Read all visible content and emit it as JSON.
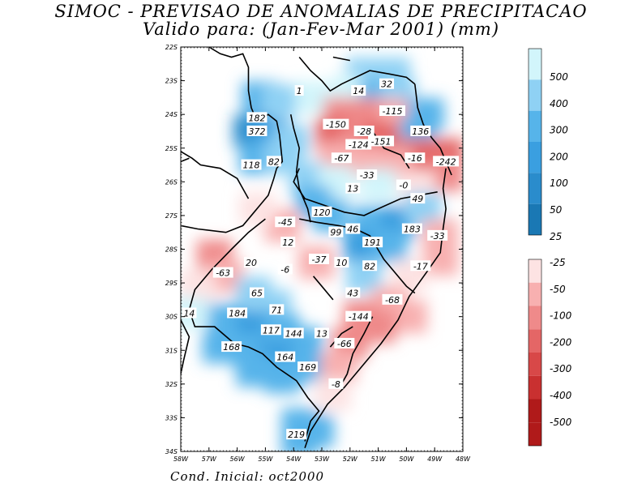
{
  "title_line1": "SIMOC - PREVISAO DE ANOMALIAS DE PRECIPITACAO",
  "title_line2": "Valido para: (Jan-Fev-Mar 2001) (mm)",
  "footer": "Cond. Inicial: oct2000",
  "lat_labels": [
    "22S",
    "23S",
    "24S",
    "25S",
    "26S",
    "27S",
    "28S",
    "29S",
    "30S",
    "31S",
    "32S",
    "33S",
    "34S"
  ],
  "lon_labels": [
    "58W",
    "57W",
    "56W",
    "55W",
    "54W",
    "53W",
    "52W",
    "51W",
    "50W",
    "49W",
    "48W"
  ],
  "colorbar_positive": {
    "labels": [
      "500",
      "400",
      "300",
      "200",
      "100",
      "50",
      "25"
    ],
    "colors": [
      "#1a78b4",
      "#2a8ccc",
      "#3a9fe0",
      "#56b4ea",
      "#8fd1f4",
      "#d2f5fb"
    ]
  },
  "colorbar_negative": {
    "labels": [
      "-25",
      "-50",
      "-100",
      "-200",
      "-300",
      "-400",
      "-500"
    ],
    "colors": [
      "#fde3e3",
      "#f8b0b0",
      "#ef8a8a",
      "#e46666",
      "#d84848",
      "#c93030",
      "#b01a1a"
    ]
  },
  "values": [
    {
      "text": "1",
      "lon": -53.8,
      "lat": -23.3
    },
    {
      "text": "14",
      "lon": -51.7,
      "lat": -23.3
    },
    {
      "text": "32",
      "lon": -50.7,
      "lat": -23.1
    },
    {
      "text": "-115",
      "lon": -50.5,
      "lat": -23.9
    },
    {
      "text": "182",
      "lon": -55.3,
      "lat": -24.1
    },
    {
      "text": "372",
      "lon": -55.3,
      "lat": -24.5
    },
    {
      "text": "-150",
      "lon": -52.5,
      "lat": -24.3
    },
    {
      "text": "-28",
      "lon": -51.5,
      "lat": -24.5
    },
    {
      "text": "136",
      "lon": -49.5,
      "lat": -24.5
    },
    {
      "text": "-124",
      "lon": -51.7,
      "lat": -24.9
    },
    {
      "text": "-151",
      "lon": -50.9,
      "lat": -24.8
    },
    {
      "text": "-67",
      "lon": -52.3,
      "lat": -25.3
    },
    {
      "text": "-16",
      "lon": -49.7,
      "lat": -25.3
    },
    {
      "text": "-242",
      "lon": -48.6,
      "lat": -25.4
    },
    {
      "text": "118",
      "lon": -55.5,
      "lat": -25.5
    },
    {
      "text": "82",
      "lon": -54.7,
      "lat": -25.4
    },
    {
      "text": "-33",
      "lon": -51.4,
      "lat": -25.8
    },
    {
      "text": "13",
      "lon": -51.9,
      "lat": -26.2
    },
    {
      "text": "-0",
      "lon": -50.1,
      "lat": -26.1
    },
    {
      "text": "49",
      "lon": -49.6,
      "lat": -26.5
    },
    {
      "text": "120",
      "lon": -53.0,
      "lat": -26.9
    },
    {
      "text": "-45",
      "lon": -54.3,
      "lat": -27.2
    },
    {
      "text": "99",
      "lon": -52.5,
      "lat": -27.5
    },
    {
      "text": "46",
      "lon": -51.9,
      "lat": -27.4
    },
    {
      "text": "183",
      "lon": -49.8,
      "lat": -27.4
    },
    {
      "text": "-33",
      "lon": -48.9,
      "lat": -27.6
    },
    {
      "text": "12",
      "lon": -54.2,
      "lat": -27.8
    },
    {
      "text": "191",
      "lon": -51.2,
      "lat": -27.8
    },
    {
      "text": "-37",
      "lon": -53.1,
      "lat": -28.3
    },
    {
      "text": "10",
      "lon": -52.3,
      "lat": -28.4
    },
    {
      "text": "82",
      "lon": -51.3,
      "lat": -28.5
    },
    {
      "text": "-17",
      "lon": -49.5,
      "lat": -28.5
    },
    {
      "text": "20",
      "lon": -55.5,
      "lat": -28.4
    },
    {
      "text": "-6",
      "lon": -54.3,
      "lat": -28.6
    },
    {
      "text": "-63",
      "lon": -56.5,
      "lat": -28.7
    },
    {
      "text": "65",
      "lon": -55.3,
      "lat": -29.3
    },
    {
      "text": "43",
      "lon": -51.9,
      "lat": -29.3
    },
    {
      "text": "-68",
      "lon": -50.5,
      "lat": -29.5
    },
    {
      "text": "71",
      "lon": -54.6,
      "lat": -29.8
    },
    {
      "text": "14",
      "lon": -57.7,
      "lat": -29.9
    },
    {
      "text": "184",
      "lon": -56.0,
      "lat": -29.9
    },
    {
      "text": "-144",
      "lon": -51.7,
      "lat": -30.0
    },
    {
      "text": "117",
      "lon": -54.8,
      "lat": -30.4
    },
    {
      "text": "144",
      "lon": -54.0,
      "lat": -30.5
    },
    {
      "text": "13",
      "lon": -53.0,
      "lat": -30.5
    },
    {
      "text": "-66",
      "lon": -52.2,
      "lat": -30.8
    },
    {
      "text": "168",
      "lon": -56.2,
      "lat": -30.9
    },
    {
      "text": "164",
      "lon": -54.3,
      "lat": -31.2
    },
    {
      "text": "169",
      "lon": -53.5,
      "lat": -31.5
    },
    {
      "text": "-8",
      "lon": -52.5,
      "lat": -32.0
    },
    {
      "text": "219",
      "lon": -53.9,
      "lat": -33.5
    }
  ],
  "field_cells": [
    {
      "lon": -51.5,
      "lat": -22.8,
      "v": 60
    },
    {
      "lon": -50.5,
      "lat": -22.8,
      "v": 80
    },
    {
      "lon": -52.0,
      "lat": -23.3,
      "v": 40
    },
    {
      "lon": -51.0,
      "lat": -23.4,
      "v": 150
    },
    {
      "lon": -50.3,
      "lat": -23.4,
      "v": 60
    },
    {
      "lon": -55.2,
      "lat": -23.5,
      "v": 150
    },
    {
      "lon": -54.5,
      "lat": -23.6,
      "v": 60
    },
    {
      "lon": -53.3,
      "lat": -23.5,
      "v": 40
    },
    {
      "lon": -52.3,
      "lat": -24.0,
      "v": -140
    },
    {
      "lon": -51.3,
      "lat": -24.0,
      "v": -100
    },
    {
      "lon": -50.3,
      "lat": -24.0,
      "v": -60
    },
    {
      "lon": -49.3,
      "lat": -24.0,
      "v": 150
    },
    {
      "lon": -55.5,
      "lat": -24.5,
      "v": 350
    },
    {
      "lon": -54.8,
      "lat": -24.6,
      "v": 220
    },
    {
      "lon": -54.1,
      "lat": -24.8,
      "v": 80
    },
    {
      "lon": -52.6,
      "lat": -24.6,
      "v": -210
    },
    {
      "lon": -51.7,
      "lat": -24.8,
      "v": -180
    },
    {
      "lon": -50.9,
      "lat": -24.7,
      "v": -200
    },
    {
      "lon": -49.6,
      "lat": -24.6,
      "v": 140
    },
    {
      "lon": -49.6,
      "lat": -25.2,
      "v": -200
    },
    {
      "lon": -48.6,
      "lat": -25.2,
      "v": -220
    },
    {
      "lon": -48.6,
      "lat": -25.8,
      "v": -150
    },
    {
      "lon": -55.3,
      "lat": -25.3,
      "v": 160
    },
    {
      "lon": -54.4,
      "lat": -25.3,
      "v": 80
    },
    {
      "lon": -52.5,
      "lat": -25.3,
      "v": -60
    },
    {
      "lon": -51.4,
      "lat": -25.4,
      "v": -80
    },
    {
      "lon": -50.4,
      "lat": -25.5,
      "v": -70
    },
    {
      "lon": -53.5,
      "lat": -25.9,
      "v": 60
    },
    {
      "lon": -52.5,
      "lat": -26.0,
      "v": 30
    },
    {
      "lon": -51.0,
      "lat": -26.1,
      "v": 40
    },
    {
      "lon": -49.6,
      "lat": -26.2,
      "v": -40
    },
    {
      "lon": -53.3,
      "lat": -26.6,
      "v": 130
    },
    {
      "lon": -52.7,
      "lat": -27.0,
      "v": 150
    },
    {
      "lon": -51.3,
      "lat": -27.2,
      "v": 180
    },
    {
      "lon": -50.3,
      "lat": -27.2,
      "v": 230
    },
    {
      "lon": -49.4,
      "lat": -26.8,
      "v": 60
    },
    {
      "lon": -51.6,
      "lat": -27.9,
      "v": 200
    },
    {
      "lon": -50.6,
      "lat": -27.9,
      "v": 160
    },
    {
      "lon": -48.8,
      "lat": -27.6,
      "v": -60
    },
    {
      "lon": -48.8,
      "lat": -28.3,
      "v": -70
    },
    {
      "lon": -54.4,
      "lat": -27.3,
      "v": -80
    },
    {
      "lon": -55.3,
      "lat": -26.8,
      "v": -30
    },
    {
      "lon": -56.8,
      "lat": -28.2,
      "v": -120
    },
    {
      "lon": -56.4,
      "lat": -28.8,
      "v": -70
    },
    {
      "lon": -57.4,
      "lat": -29.1,
      "v": -40
    },
    {
      "lon": -53.2,
      "lat": -28.4,
      "v": -50
    },
    {
      "lon": -51.5,
      "lat": -28.8,
      "v": 70
    },
    {
      "lon": -49.9,
      "lat": -28.8,
      "v": -40
    },
    {
      "lon": -50.6,
      "lat": -29.6,
      "v": -90
    },
    {
      "lon": -49.9,
      "lat": -30.0,
      "v": -70
    },
    {
      "lon": -55.4,
      "lat": -29.3,
      "v": 70
    },
    {
      "lon": -54.7,
      "lat": -29.7,
      "v": 90
    },
    {
      "lon": -56.4,
      "lat": -30.1,
      "v": 190
    },
    {
      "lon": -55.4,
      "lat": -30.3,
      "v": 210
    },
    {
      "lon": -54.4,
      "lat": -30.4,
      "v": 190
    },
    {
      "lon": -53.6,
      "lat": -30.8,
      "v": 130
    },
    {
      "lon": -56.6,
      "lat": -30.9,
      "v": 180
    },
    {
      "lon": -55.6,
      "lat": -31.0,
      "v": 190
    },
    {
      "lon": -54.6,
      "lat": -31.2,
      "v": 200
    },
    {
      "lon": -53.6,
      "lat": -31.5,
      "v": 180
    },
    {
      "lon": -55.4,
      "lat": -31.6,
      "v": 120
    },
    {
      "lon": -54.4,
      "lat": -31.8,
      "v": 140
    },
    {
      "lon": -51.6,
      "lat": -30.0,
      "v": -170
    },
    {
      "lon": -51.0,
      "lat": -30.3,
      "v": -120
    },
    {
      "lon": -52.0,
      "lat": -30.8,
      "v": -110
    },
    {
      "lon": -52.4,
      "lat": -31.5,
      "v": -60
    },
    {
      "lon": -52.6,
      "lat": -32.3,
      "v": -40
    },
    {
      "lon": -57.7,
      "lat": -29.9,
      "v": 30
    },
    {
      "lon": -53.8,
      "lat": -33.2,
      "v": 190
    },
    {
      "lon": -53.8,
      "lat": -33.7,
      "v": 170
    },
    {
      "lon": -53.2,
      "lat": -33.4,
      "v": 140
    }
  ]
}
